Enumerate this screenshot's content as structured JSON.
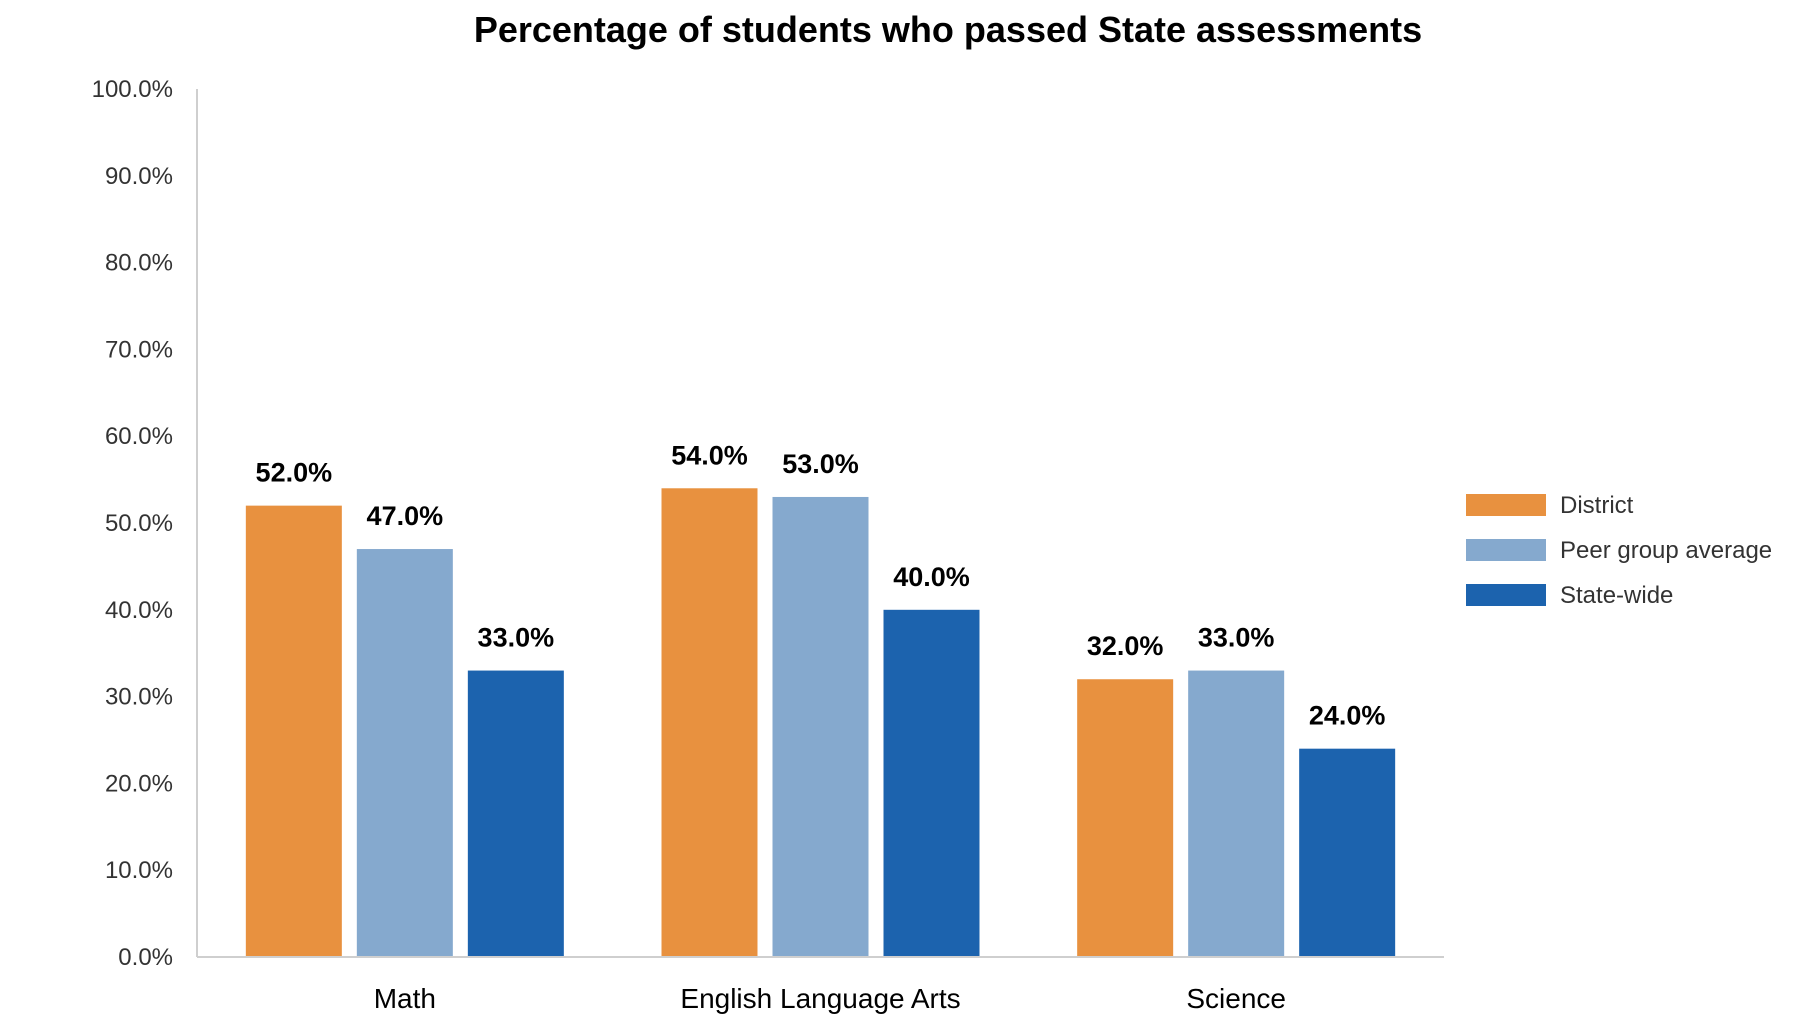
{
  "chart_data": {
    "type": "bar",
    "title": "Percentage of students who passed State assessments",
    "categories": [
      "Math",
      "English Language Arts",
      "Science"
    ],
    "series": [
      {
        "name": "District",
        "color": "#E8913F",
        "values": [
          52.0,
          54.0,
          32.0
        ]
      },
      {
        "name": "Peer group average",
        "color": "#85A9CE",
        "values": [
          47.0,
          53.0,
          33.0
        ]
      },
      {
        "name": "State-wide",
        "color": "#1C63AE",
        "values": [
          33.0,
          40.0,
          24.0
        ]
      }
    ],
    "value_format": "percent_one_decimal",
    "ylim": [
      0,
      100
    ],
    "yticks": [
      "0.0%",
      "10.0%",
      "20.0%",
      "30.0%",
      "40.0%",
      "50.0%",
      "60.0%",
      "70.0%",
      "80.0%",
      "90.0%",
      "100.0%"
    ],
    "xlabel": "",
    "ylabel": "",
    "grid": false,
    "legend_position": "right"
  }
}
